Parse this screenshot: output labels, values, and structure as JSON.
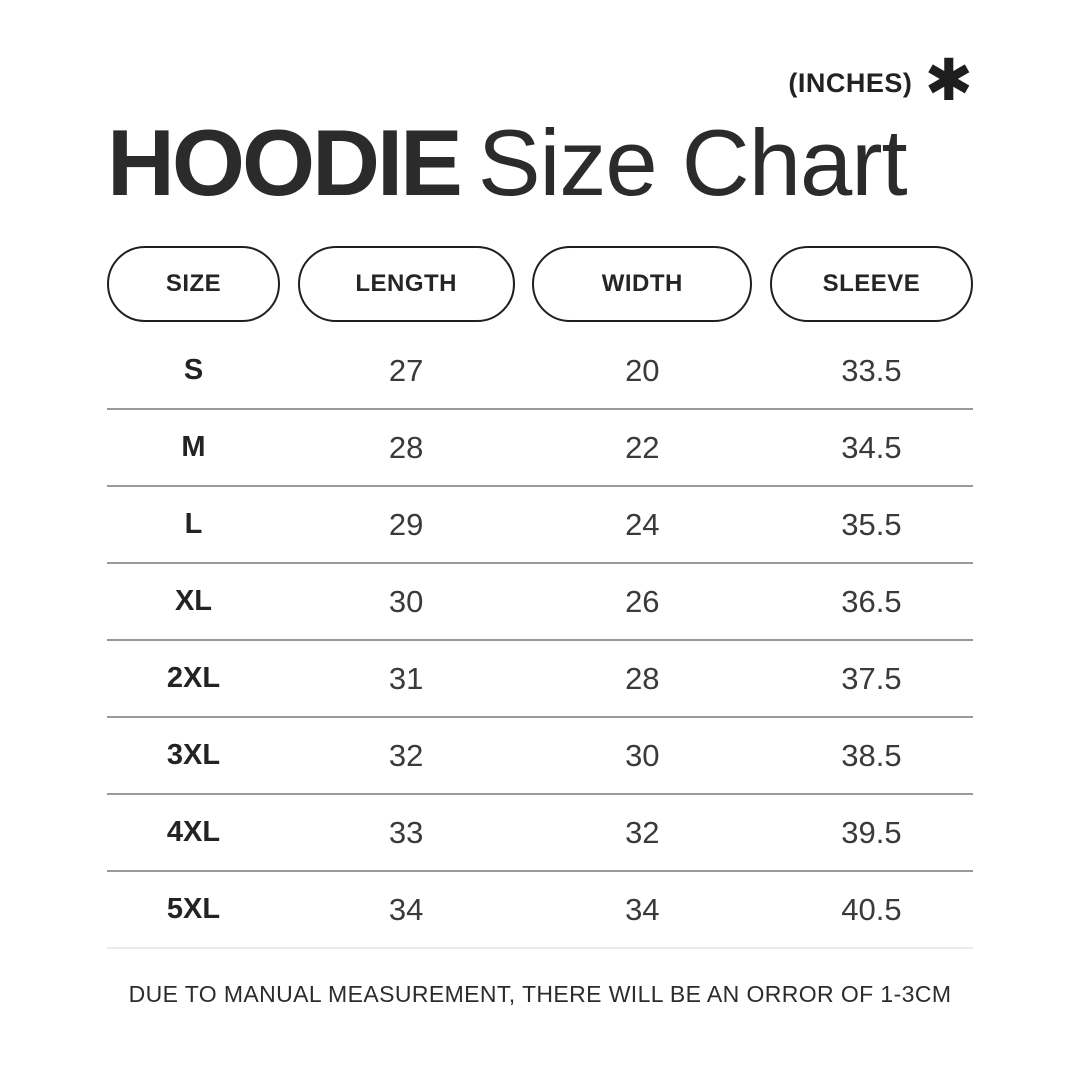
{
  "header": {
    "units_label": "(INCHES)",
    "asterisk_glyph": "✱",
    "title_bold": "HOODIE",
    "title_regular": "Size Chart"
  },
  "table": {
    "columns": [
      "SIZE",
      "LENGTH",
      "WIDTH",
      "SLEEVE"
    ],
    "rows": [
      {
        "size": "S",
        "length": "27",
        "width": "20",
        "sleeve": "33.5"
      },
      {
        "size": "M",
        "length": "28",
        "width": "22",
        "sleeve": "34.5"
      },
      {
        "size": "L",
        "length": "29",
        "width": "24",
        "sleeve": "35.5"
      },
      {
        "size": "XL",
        "length": "30",
        "width": "26",
        "sleeve": "36.5"
      },
      {
        "size": "2XL",
        "length": "31",
        "width": "28",
        "sleeve": "37.5"
      },
      {
        "size": "3XL",
        "length": "32",
        "width": "30",
        "sleeve": "38.5"
      },
      {
        "size": "4XL",
        "length": "33",
        "width": "32",
        "sleeve": "39.5"
      },
      {
        "size": "5XL",
        "length": "34",
        "width": "34",
        "sleeve": "40.5"
      }
    ]
  },
  "footer": {
    "note": "DUE TO MANUAL MEASUREMENT, THERE WILL BE AN ORROR OF 1-3CM"
  },
  "colors": {
    "text": "#2b2b2b",
    "pill_border": "#1f1f1f",
    "divider": "#9a9a9a",
    "divider_light": "#ebebeb",
    "background": "#ffffff"
  },
  "chart_data": {
    "type": "table",
    "title": "HOODIE Size Chart",
    "units": "INCHES",
    "columns": [
      "SIZE",
      "LENGTH",
      "WIDTH",
      "SLEEVE"
    ],
    "rows": [
      [
        "S",
        27,
        20,
        33.5
      ],
      [
        "M",
        28,
        22,
        34.5
      ],
      [
        "L",
        29,
        24,
        35.5
      ],
      [
        "XL",
        30,
        26,
        36.5
      ],
      [
        "2XL",
        31,
        28,
        37.5
      ],
      [
        "3XL",
        32,
        30,
        38.5
      ],
      [
        "4XL",
        33,
        32,
        39.5
      ],
      [
        "5XL",
        34,
        34,
        40.5
      ]
    ],
    "note": "DUE TO MANUAL MEASUREMENT, THERE WILL BE AN ORROR OF 1-3CM"
  }
}
